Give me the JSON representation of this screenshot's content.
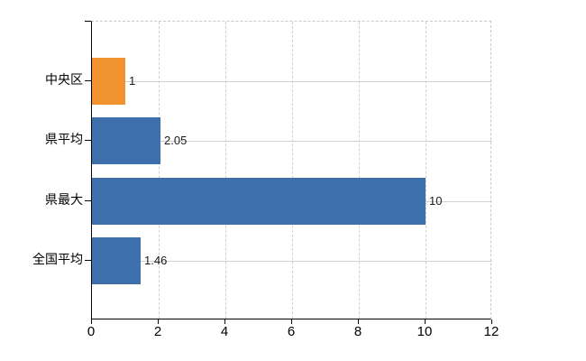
{
  "chart_data": {
    "type": "bar",
    "orientation": "horizontal",
    "title": "",
    "xlabel": "",
    "ylabel": "",
    "categories": [
      "中央区",
      "県平均",
      "県最大",
      "全国平均"
    ],
    "values": [
      1,
      2.05,
      10,
      1.46
    ],
    "value_labels": [
      "1",
      "2.05",
      "10",
      "1.46"
    ],
    "bar_colors": [
      "#f0922f",
      "#3e70ae",
      "#3e70ae",
      "#3e70ae"
    ],
    "x_ticks": [
      "0",
      "2",
      "4",
      "6",
      "8",
      "10",
      "12"
    ],
    "x_tick_values": [
      0,
      2,
      4,
      6,
      8,
      10,
      12
    ],
    "xlim": [
      0,
      12
    ],
    "grid": true,
    "legend": "none"
  },
  "style": {
    "bar_orange": "#f0922f",
    "bar_blue": "#3e70ae",
    "axis_color": "#000000",
    "grid_vertical_color": "#d3cfd7",
    "grid_horizontal_color": "#ccd4cc",
    "plot_border_dash_color": "#c9c9c9",
    "text_color": "#000000",
    "value_label_color": "#1a1a1a",
    "background": "#ffffff"
  }
}
